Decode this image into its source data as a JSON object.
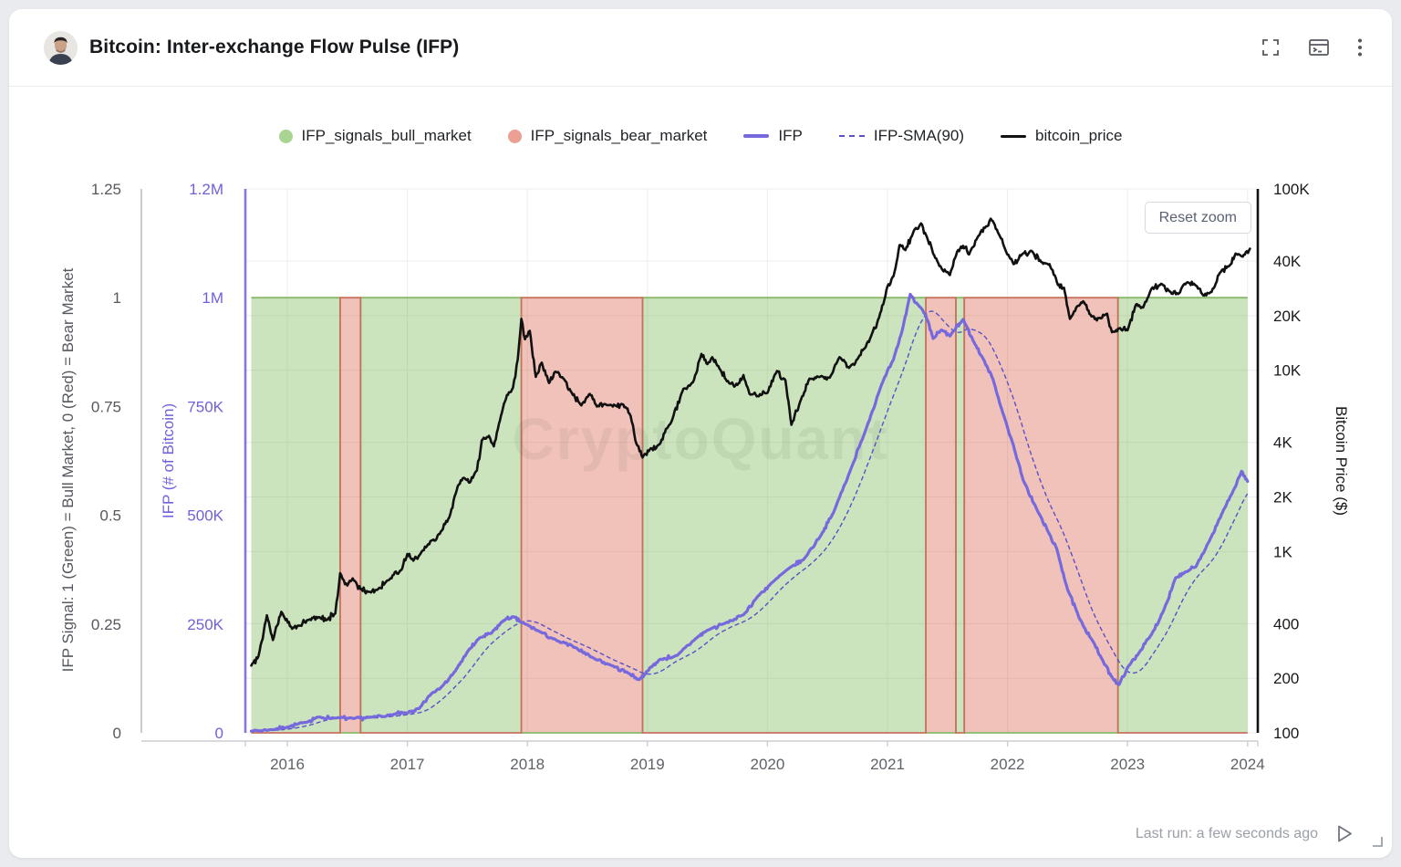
{
  "header": {
    "title": "Bitcoin: Inter-exchange Flow Pulse (IFP)",
    "icons": [
      "fullscreen",
      "console",
      "more-options"
    ]
  },
  "controls": {
    "reset_zoom_label": "Reset zoom"
  },
  "watermark": "CryptoQuant",
  "footer": {
    "last_run": "Last run: a few seconds ago"
  },
  "legend": [
    {
      "label": "IFP_signals_bull_market",
      "marker": "circle",
      "color": "#a9d592"
    },
    {
      "label": "IFP_signals_bear_market",
      "marker": "circle",
      "color": "#eba093"
    },
    {
      "label": "IFP",
      "marker": "line",
      "color": "#7668dd"
    },
    {
      "label": "IFP-SMA(90)",
      "marker": "dashed-line",
      "color": "#5a50c8"
    },
    {
      "label": "bitcoin_price",
      "marker": "line",
      "color": "#111111"
    }
  ],
  "chart_data": {
    "type": "line",
    "title": "Bitcoin: Inter-exchange Flow Pulse (IFP)",
    "x_range": [
      2015.66,
      2024.08
    ],
    "grid": true,
    "axes": {
      "x": {
        "ticks": [
          "2016",
          "2017",
          "2018",
          "2019",
          "2020",
          "2021",
          "2022",
          "2023",
          "2024"
        ],
        "tick_values": [
          2016,
          2017,
          2018,
          2019,
          2020,
          2021,
          2022,
          2023,
          2024
        ]
      },
      "signal": {
        "title": "IFP Signal: 1 (Green) = Bull Market, 0 (Red) = Bear Market",
        "ticks": [
          "0",
          "0.25",
          "0.5",
          "0.75",
          "1",
          "1.25"
        ],
        "tick_values": [
          0,
          0.25,
          0.5,
          0.75,
          1,
          1.25
        ],
        "range": [
          0,
          1.25
        ],
        "color": "#55585e"
      },
      "ifp": {
        "title": "IFP (# of Bitcoin)",
        "ticks": [
          "0",
          "250K",
          "500K",
          "750K",
          "1M",
          "1.2M"
        ],
        "tick_values": [
          0,
          250000,
          500000,
          750000,
          1000000,
          1250000
        ],
        "range": [
          0,
          1250000
        ],
        "color": "#6f61d9"
      },
      "price": {
        "title": "Bitcoin Price ($)",
        "ticks": [
          "100",
          "200",
          "400",
          "1K",
          "2K",
          "4K",
          "10K",
          "20K",
          "40K",
          "100K"
        ],
        "tick_values": [
          100,
          200,
          400,
          1000,
          2000,
          4000,
          10000,
          20000,
          40000,
          100000
        ],
        "range": [
          100,
          100000
        ],
        "scale": "log",
        "color": "#17191c"
      }
    },
    "signal_bands": [
      {
        "from": 2015.7,
        "to": 2016.44,
        "state": "bull"
      },
      {
        "from": 2016.44,
        "to": 2016.61,
        "state": "bear"
      },
      {
        "from": 2016.61,
        "to": 2017.95,
        "state": "bull"
      },
      {
        "from": 2017.95,
        "to": 2018.96,
        "state": "bear"
      },
      {
        "from": 2018.96,
        "to": 2021.32,
        "state": "bull"
      },
      {
        "from": 2021.32,
        "to": 2021.57,
        "state": "bear"
      },
      {
        "from": 2021.57,
        "to": 2021.64,
        "state": "bull"
      },
      {
        "from": 2021.64,
        "to": 2022.92,
        "state": "bear"
      },
      {
        "from": 2022.92,
        "to": 2024.0,
        "state": "bull"
      }
    ],
    "colors": {
      "bull_fill": "#78b855",
      "bull_line": "#86b96a",
      "bear_fill": "#d95f46",
      "bear_line": "#c87260",
      "ifp": "#7668dd",
      "sma": "#5a50c8",
      "price": "#111111",
      "grid": "#ececec",
      "axis_signal_line": "#c9ccd1",
      "axis_ifp_line": "#8478d8",
      "axis_price_line": "#111111"
    },
    "series": [
      {
        "name": "IFP",
        "axis": "ifp",
        "style": "solid",
        "points": [
          [
            2015.7,
            4000
          ],
          [
            2015.85,
            7000
          ],
          [
            2016.0,
            13000
          ],
          [
            2016.15,
            24000
          ],
          [
            2016.25,
            36000
          ],
          [
            2016.4,
            34000
          ],
          [
            2016.55,
            33000
          ],
          [
            2016.7,
            36000
          ],
          [
            2016.85,
            41000
          ],
          [
            2017.0,
            46000
          ],
          [
            2017.1,
            56000
          ],
          [
            2017.2,
            90000
          ],
          [
            2017.3,
            110000
          ],
          [
            2017.4,
            142000
          ],
          [
            2017.5,
            186000
          ],
          [
            2017.6,
            218000
          ],
          [
            2017.7,
            229000
          ],
          [
            2017.8,
            258000
          ],
          [
            2017.88,
            267000
          ],
          [
            2017.95,
            254000
          ],
          [
            2018.1,
            233000
          ],
          [
            2018.25,
            211000
          ],
          [
            2018.4,
            196000
          ],
          [
            2018.55,
            172000
          ],
          [
            2018.7,
            155000
          ],
          [
            2018.85,
            136000
          ],
          [
            2018.93,
            122000
          ],
          [
            2019.0,
            142000
          ],
          [
            2019.1,
            168000
          ],
          [
            2019.25,
            178000
          ],
          [
            2019.4,
            216000
          ],
          [
            2019.5,
            236000
          ],
          [
            2019.65,
            252000
          ],
          [
            2019.8,
            271000
          ],
          [
            2019.92,
            314000
          ],
          [
            2020.05,
            348000
          ],
          [
            2020.2,
            382000
          ],
          [
            2020.3,
            398000
          ],
          [
            2020.45,
            456000
          ],
          [
            2020.55,
            506000
          ],
          [
            2020.7,
            610000
          ],
          [
            2020.8,
            682000
          ],
          [
            2020.95,
            800000
          ],
          [
            2021.05,
            858000
          ],
          [
            2021.12,
            922000
          ],
          [
            2021.19,
            1008000
          ],
          [
            2021.26,
            982000
          ],
          [
            2021.32,
            958000
          ],
          [
            2021.38,
            906000
          ],
          [
            2021.45,
            926000
          ],
          [
            2021.52,
            912000
          ],
          [
            2021.63,
            950000
          ],
          [
            2021.72,
            898000
          ],
          [
            2021.8,
            858000
          ],
          [
            2021.88,
            812000
          ],
          [
            2021.96,
            736000
          ],
          [
            2022.05,
            660000
          ],
          [
            2022.13,
            581000
          ],
          [
            2022.25,
            510000
          ],
          [
            2022.35,
            456000
          ],
          [
            2022.41,
            423000
          ],
          [
            2022.5,
            330000
          ],
          [
            2022.6,
            262000
          ],
          [
            2022.71,
            211000
          ],
          [
            2022.8,
            162000
          ],
          [
            2022.88,
            124000
          ],
          [
            2022.93,
            111000
          ],
          [
            2023.0,
            150000
          ],
          [
            2023.1,
            186000
          ],
          [
            2023.2,
            226000
          ],
          [
            2023.3,
            281000
          ],
          [
            2023.4,
            356000
          ],
          [
            2023.5,
            371000
          ],
          [
            2023.57,
            382000
          ],
          [
            2023.68,
            440000
          ],
          [
            2023.79,
            506000
          ],
          [
            2023.88,
            556000
          ],
          [
            2023.95,
            601000
          ],
          [
            2024.0,
            578000
          ]
        ]
      },
      {
        "name": "IFP-SMA(90)",
        "axis": "ifp",
        "style": "dashed",
        "derived": "trailing 90-day simple moving average of IFP",
        "window_days": 90
      },
      {
        "name": "bitcoin_price",
        "axis": "price",
        "style": "solid",
        "points": [
          [
            2015.7,
            235
          ],
          [
            2015.76,
            265
          ],
          [
            2015.83,
            445
          ],
          [
            2015.88,
            325
          ],
          [
            2015.95,
            465
          ],
          [
            2016.04,
            375
          ],
          [
            2016.1,
            390
          ],
          [
            2016.18,
            420
          ],
          [
            2016.26,
            435
          ],
          [
            2016.33,
            420
          ],
          [
            2016.4,
            455
          ],
          [
            2016.44,
            760
          ],
          [
            2016.48,
            660
          ],
          [
            2016.52,
            690
          ],
          [
            2016.57,
            680
          ],
          [
            2016.61,
            620
          ],
          [
            2016.68,
            600
          ],
          [
            2016.75,
            615
          ],
          [
            2016.85,
            700
          ],
          [
            2016.95,
            790
          ],
          [
            2017.0,
            970
          ],
          [
            2017.05,
            890
          ],
          [
            2017.12,
            1000
          ],
          [
            2017.2,
            1150
          ],
          [
            2017.27,
            1250
          ],
          [
            2017.35,
            1550
          ],
          [
            2017.42,
            2300
          ],
          [
            2017.47,
            2550
          ],
          [
            2017.52,
            2400
          ],
          [
            2017.58,
            2800
          ],
          [
            2017.62,
            4100
          ],
          [
            2017.68,
            4350
          ],
          [
            2017.72,
            3800
          ],
          [
            2017.78,
            5600
          ],
          [
            2017.83,
            7300
          ],
          [
            2017.88,
            8000
          ],
          [
            2017.92,
            11500
          ],
          [
            2017.95,
            19200
          ],
          [
            2017.98,
            14800
          ],
          [
            2018.02,
            16500
          ],
          [
            2018.07,
            9200
          ],
          [
            2018.12,
            11000
          ],
          [
            2018.18,
            8500
          ],
          [
            2018.23,
            9800
          ],
          [
            2018.3,
            9000
          ],
          [
            2018.37,
            7500
          ],
          [
            2018.45,
            6400
          ],
          [
            2018.52,
            7400
          ],
          [
            2018.58,
            6300
          ],
          [
            2018.65,
            6500
          ],
          [
            2018.73,
            6400
          ],
          [
            2018.8,
            6450
          ],
          [
            2018.86,
            5600
          ],
          [
            2018.9,
            4100
          ],
          [
            2018.96,
            3300
          ],
          [
            2019.02,
            3650
          ],
          [
            2019.1,
            3900
          ],
          [
            2019.2,
            5200
          ],
          [
            2019.3,
            7900
          ],
          [
            2019.38,
            8600
          ],
          [
            2019.45,
            12300
          ],
          [
            2019.5,
            10800
          ],
          [
            2019.54,
            11800
          ],
          [
            2019.6,
            10200
          ],
          [
            2019.68,
            8500
          ],
          [
            2019.75,
            8300
          ],
          [
            2019.8,
            9400
          ],
          [
            2019.85,
            7400
          ],
          [
            2019.92,
            7200
          ],
          [
            2020.0,
            7500
          ],
          [
            2020.08,
            9900
          ],
          [
            2020.15,
            8800
          ],
          [
            2020.2,
            5000
          ],
          [
            2020.28,
            6900
          ],
          [
            2020.35,
            9000
          ],
          [
            2020.45,
            9300
          ],
          [
            2020.52,
            9100
          ],
          [
            2020.6,
            11800
          ],
          [
            2020.68,
            10300
          ],
          [
            2020.75,
            11500
          ],
          [
            2020.82,
            13500
          ],
          [
            2020.88,
            16500
          ],
          [
            2020.93,
            19500
          ],
          [
            2021.0,
            29000
          ],
          [
            2021.05,
            33000
          ],
          [
            2021.1,
            49000
          ],
          [
            2021.15,
            46000
          ],
          [
            2021.22,
            59000
          ],
          [
            2021.28,
            64500
          ],
          [
            2021.33,
            54000
          ],
          [
            2021.38,
            44000
          ],
          [
            2021.45,
            36500
          ],
          [
            2021.52,
            33500
          ],
          [
            2021.58,
            45000
          ],
          [
            2021.63,
            48500
          ],
          [
            2021.68,
            43500
          ],
          [
            2021.75,
            54000
          ],
          [
            2021.82,
            62000
          ],
          [
            2021.86,
            68500
          ],
          [
            2021.92,
            57500
          ],
          [
            2021.98,
            46500
          ],
          [
            2022.05,
            38500
          ],
          [
            2022.12,
            43500
          ],
          [
            2022.2,
            45500
          ],
          [
            2022.28,
            39500
          ],
          [
            2022.35,
            38500
          ],
          [
            2022.42,
            29500
          ],
          [
            2022.47,
            28500
          ],
          [
            2022.52,
            19200
          ],
          [
            2022.58,
            22500
          ],
          [
            2022.63,
            24000
          ],
          [
            2022.7,
            19800
          ],
          [
            2022.78,
            19300
          ],
          [
            2022.83,
            20500
          ],
          [
            2022.87,
            16200
          ],
          [
            2022.93,
            17000
          ],
          [
            2023.0,
            16600
          ],
          [
            2023.07,
            23000
          ],
          [
            2023.13,
            22200
          ],
          [
            2023.2,
            28200
          ],
          [
            2023.28,
            30000
          ],
          [
            2023.35,
            27200
          ],
          [
            2023.42,
            26300
          ],
          [
            2023.5,
            30600
          ],
          [
            2023.57,
            29300
          ],
          [
            2023.63,
            25900
          ],
          [
            2023.7,
            27000
          ],
          [
            2023.77,
            34500
          ],
          [
            2023.85,
            37800
          ],
          [
            2023.9,
            44000
          ],
          [
            2023.96,
            42300
          ],
          [
            2024.02,
            46800
          ]
        ]
      }
    ]
  }
}
